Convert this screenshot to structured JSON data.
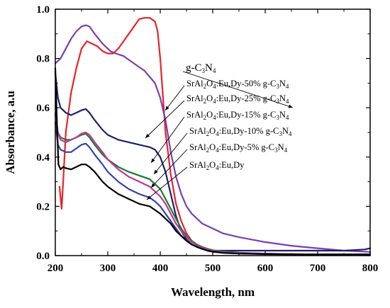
{
  "chart_data": {
    "type": "line",
    "title": "",
    "xlabel": "Wavelength, nm",
    "ylabel": "Absorbance, a.u",
    "xlim": [
      200,
      800
    ],
    "ylim": [
      0.0,
      1.0
    ],
    "x_ticks": [
      "200",
      "300",
      "400",
      "500",
      "600",
      "700",
      "800"
    ],
    "y_ticks": [
      "0.0",
      "0.2",
      "0.4",
      "0.6",
      "0.8",
      "1.0"
    ],
    "grid": false,
    "legend": "annotations",
    "series": [
      {
        "name": "g-C3N4",
        "label_parts": [
          {
            "t": "g-C"
          },
          {
            "t": "3",
            "sub": true
          },
          {
            "t": "N"
          },
          {
            "t": "4",
            "sub": true
          }
        ],
        "color": "#e8232a",
        "x": [
          208,
          212,
          215,
          220,
          230,
          240,
          250,
          260,
          270,
          280,
          290,
          300,
          310,
          320,
          330,
          340,
          350,
          360,
          370,
          380,
          390,
          395,
          400,
          405,
          410,
          420,
          430,
          440,
          450,
          460,
          470,
          480,
          490,
          500,
          520,
          550,
          600,
          650,
          700,
          750,
          800
        ],
        "y": [
          0.28,
          0.19,
          0.3,
          0.5,
          0.66,
          0.76,
          0.84,
          0.87,
          0.86,
          0.85,
          0.83,
          0.82,
          0.82,
          0.84,
          0.87,
          0.9,
          0.93,
          0.96,
          0.965,
          0.965,
          0.95,
          0.91,
          0.8,
          0.65,
          0.5,
          0.33,
          0.21,
          0.14,
          0.09,
          0.06,
          0.04,
          0.03,
          0.02,
          0.015,
          0.012,
          0.01,
          0.008,
          0.006,
          0.005,
          0.005,
          0.005
        ]
      },
      {
        "name": "SrAl2O4:Eu,Dy-50% g-C3N4",
        "label_parts": [
          {
            "t": "SrAl"
          },
          {
            "t": "2",
            "sub": true
          },
          {
            "t": "O"
          },
          {
            "t": "4",
            "sub": true
          },
          {
            "t": ":Eu,Dy-50% g-C"
          },
          {
            "t": "3",
            "sub": true
          },
          {
            "t": "N"
          },
          {
            "t": "4",
            "sub": true
          }
        ],
        "color": "#7b3fb0",
        "x": [
          200,
          210,
          220,
          230,
          240,
          250,
          258,
          265,
          275,
          290,
          305,
          315,
          330,
          350,
          370,
          390,
          400,
          410,
          420,
          430,
          440,
          450,
          460,
          470,
          480,
          500,
          520,
          550,
          600,
          650,
          700,
          750,
          800
        ],
        "y": [
          0.78,
          0.8,
          0.84,
          0.88,
          0.91,
          0.93,
          0.935,
          0.93,
          0.9,
          0.86,
          0.83,
          0.82,
          0.81,
          0.78,
          0.75,
          0.7,
          0.64,
          0.55,
          0.42,
          0.32,
          0.25,
          0.2,
          0.17,
          0.15,
          0.13,
          0.11,
          0.09,
          0.075,
          0.055,
          0.04,
          0.03,
          0.02,
          0.015
        ]
      },
      {
        "name": "SrAl2O4:Eu,Dy-25% g-C3N4",
        "label_parts": [
          {
            "t": "SrAl"
          },
          {
            "t": "2",
            "sub": true
          },
          {
            "t": "O"
          },
          {
            "t": "4",
            "sub": true
          },
          {
            "t": ":Eu,Dy-25% g-C"
          },
          {
            "t": "3",
            "sub": true
          },
          {
            "t": "N"
          },
          {
            "t": "4",
            "sub": true
          }
        ],
        "color": "#1d1f6b",
        "x": [
          200,
          205,
          210,
          220,
          230,
          240,
          250,
          258,
          265,
          275,
          290,
          300,
          320,
          340,
          360,
          380,
          390,
          400,
          410,
          420,
          430,
          440,
          450,
          460,
          470,
          480,
          490,
          500,
          520,
          550,
          600,
          650,
          700,
          750,
          790,
          800
        ],
        "y": [
          0.74,
          0.64,
          0.6,
          0.58,
          0.57,
          0.58,
          0.59,
          0.595,
          0.58,
          0.55,
          0.51,
          0.49,
          0.47,
          0.46,
          0.45,
          0.44,
          0.43,
          0.4,
          0.34,
          0.25,
          0.16,
          0.1,
          0.065,
          0.045,
          0.035,
          0.03,
          0.025,
          0.02,
          0.02,
          0.02,
          0.02,
          0.02,
          0.02,
          0.02,
          0.025,
          0.03
        ]
      },
      {
        "name": "SrAl2O4:Eu,Dy-15% g-C3N4",
        "label_parts": [
          {
            "t": "SrAl"
          },
          {
            "t": "2",
            "sub": true
          },
          {
            "t": "O"
          },
          {
            "t": "4",
            "sub": true
          },
          {
            "t": ":Eu,Dy-15% g-C"
          },
          {
            "t": "3",
            "sub": true
          },
          {
            "t": "N"
          },
          {
            "t": "4",
            "sub": true
          }
        ],
        "color": "#1b7a2c",
        "x": [
          200,
          205,
          210,
          220,
          230,
          240,
          250,
          258,
          265,
          275,
          290,
          300,
          320,
          340,
          360,
          380,
          390,
          400,
          410,
          420,
          430,
          440,
          450,
          460,
          470,
          480,
          490,
          500,
          520,
          550,
          600,
          650,
          700,
          750,
          800
        ],
        "y": [
          0.57,
          0.5,
          0.48,
          0.47,
          0.47,
          0.48,
          0.49,
          0.495,
          0.48,
          0.45,
          0.41,
          0.39,
          0.36,
          0.34,
          0.325,
          0.31,
          0.29,
          0.27,
          0.23,
          0.19,
          0.15,
          0.11,
          0.08,
          0.06,
          0.045,
          0.035,
          0.028,
          0.022,
          0.017,
          0.012,
          0.008,
          0.006,
          0.005,
          0.005,
          0.005
        ]
      },
      {
        "name": "SrAl2O4:Eu,Dy-10% g-C3N4",
        "label_parts": [
          {
            "t": "SrAl"
          },
          {
            "t": "2",
            "sub": true
          },
          {
            "t": "O"
          },
          {
            "t": "4",
            "sub": true
          },
          {
            "t": ":Eu,Dy-10% g-C"
          },
          {
            "t": "3",
            "sub": true
          },
          {
            "t": "N"
          },
          {
            "t": "4",
            "sub": true
          }
        ],
        "color": "#c0369a",
        "x": [
          200,
          205,
          210,
          220,
          230,
          240,
          250,
          258,
          265,
          275,
          290,
          300,
          320,
          340,
          360,
          380,
          390,
          400,
          410,
          420,
          430,
          440,
          450,
          460,
          470,
          480,
          490,
          500,
          520,
          550,
          600,
          650,
          700,
          750,
          800
        ],
        "y": [
          0.58,
          0.5,
          0.47,
          0.46,
          0.47,
          0.48,
          0.495,
          0.5,
          0.49,
          0.46,
          0.42,
          0.39,
          0.35,
          0.32,
          0.3,
          0.28,
          0.26,
          0.24,
          0.21,
          0.17,
          0.13,
          0.1,
          0.075,
          0.055,
          0.042,
          0.032,
          0.026,
          0.02,
          0.015,
          0.011,
          0.008,
          0.006,
          0.005,
          0.005,
          0.005
        ]
      },
      {
        "name": "SrAl2O4:Eu,Dy-5% g-C3N4",
        "label_parts": [
          {
            "t": "SrAl"
          },
          {
            "t": "2",
            "sub": true
          },
          {
            "t": "O"
          },
          {
            "t": "4",
            "sub": true
          },
          {
            "t": ":Eu,Dy-5% g-C"
          },
          {
            "t": "3",
            "sub": true
          },
          {
            "t": "N"
          },
          {
            "t": "4",
            "sub": true
          }
        ],
        "color": "#3343a8",
        "x": [
          200,
          205,
          210,
          220,
          230,
          240,
          250,
          258,
          265,
          275,
          290,
          300,
          320,
          340,
          360,
          380,
          390,
          400,
          410,
          420,
          430,
          440,
          450,
          460,
          470,
          480,
          490,
          500,
          520,
          550,
          600,
          650,
          700,
          750,
          800
        ],
        "y": [
          0.54,
          0.45,
          0.43,
          0.42,
          0.42,
          0.435,
          0.45,
          0.455,
          0.44,
          0.41,
          0.37,
          0.34,
          0.3,
          0.27,
          0.25,
          0.235,
          0.22,
          0.2,
          0.17,
          0.14,
          0.11,
          0.08,
          0.06,
          0.045,
          0.035,
          0.027,
          0.021,
          0.017,
          0.012,
          0.009,
          0.007,
          0.005,
          0.005,
          0.005,
          0.005
        ]
      },
      {
        "name": "SrAl2O4:Eu,Dy",
        "label_parts": [
          {
            "t": "SrAl"
          },
          {
            "t": "2",
            "sub": true
          },
          {
            "t": "O"
          },
          {
            "t": "4",
            "sub": true
          },
          {
            "t": ":Eu,Dy"
          }
        ],
        "color": "#000000",
        "x": [
          200,
          203,
          206,
          210,
          215,
          220,
          230,
          240,
          250,
          258,
          265,
          275,
          290,
          300,
          320,
          340,
          360,
          380,
          390,
          400,
          410,
          420,
          430,
          440,
          450,
          460,
          470,
          480,
          490,
          500,
          520,
          550,
          600,
          650,
          700,
          750,
          800
        ],
        "y": [
          0.76,
          0.55,
          0.37,
          0.35,
          0.36,
          0.355,
          0.35,
          0.36,
          0.37,
          0.37,
          0.36,
          0.34,
          0.3,
          0.28,
          0.25,
          0.23,
          0.21,
          0.2,
          0.185,
          0.17,
          0.15,
          0.13,
          0.1,
          0.08,
          0.06,
          0.045,
          0.035,
          0.027,
          0.02,
          0.016,
          0.011,
          0.008,
          0.006,
          0.005,
          0.005,
          0.005,
          0.005
        ]
      }
    ]
  }
}
